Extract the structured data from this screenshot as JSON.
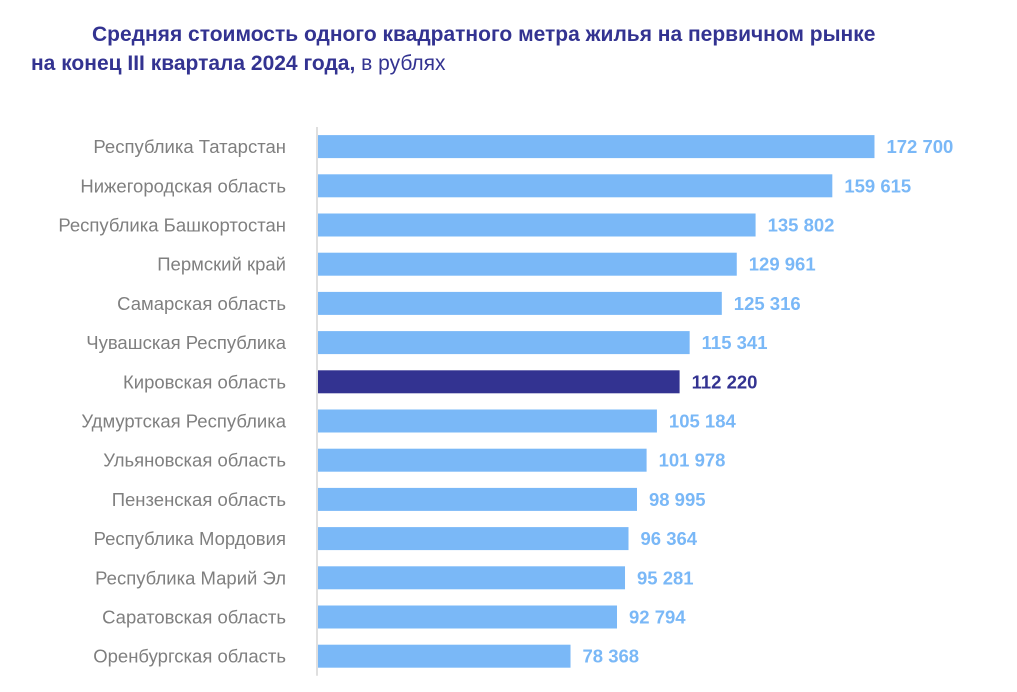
{
  "title": {
    "line1": "Средняя стоимость одного квадратного метра жилья на первичном рынке",
    "line2_bold": "на конец III квартала 2024 года,",
    "line2_normal": " в рублях"
  },
  "colors": {
    "bar": "#7ab8f7",
    "highlight": "#333391",
    "label": "#7ab8f7",
    "highlight_label": "#333391",
    "axis": "#bfbfbf"
  },
  "chart_data": {
    "type": "bar",
    "orientation": "horizontal",
    "title": "Средняя стоимость одного квадратного метра жилья на первичном рынке на конец III квартала 2024 года, в рублях",
    "xlabel": "",
    "ylabel": "",
    "xlim": [
      0,
      180000
    ],
    "grid": false,
    "legend": "none",
    "highlight_index": 6,
    "categories": [
      "Республика Татарстан",
      "Нижегородская область",
      "Республика Башкортостан",
      "Пермский край",
      "Самарская область",
      "Чувашская Республика",
      "Кировская область",
      "Удмуртская Республика",
      "Ульяновская область",
      "Пензенская область",
      "Республика Мордовия",
      "Республика Марий Эл",
      "Саратовская область",
      "Оренбургская область"
    ],
    "values": [
      172700,
      159615,
      135802,
      129961,
      125316,
      115341,
      112220,
      105184,
      101978,
      98995,
      96364,
      95281,
      92794,
      78368
    ],
    "value_labels": [
      "172 700",
      "159 615",
      "135 802",
      "129 961",
      "125 316",
      "115 341",
      "112 220",
      "105 184",
      "101 978",
      "98 995",
      "96 364",
      "95 281",
      "92 794",
      "78 368"
    ]
  }
}
